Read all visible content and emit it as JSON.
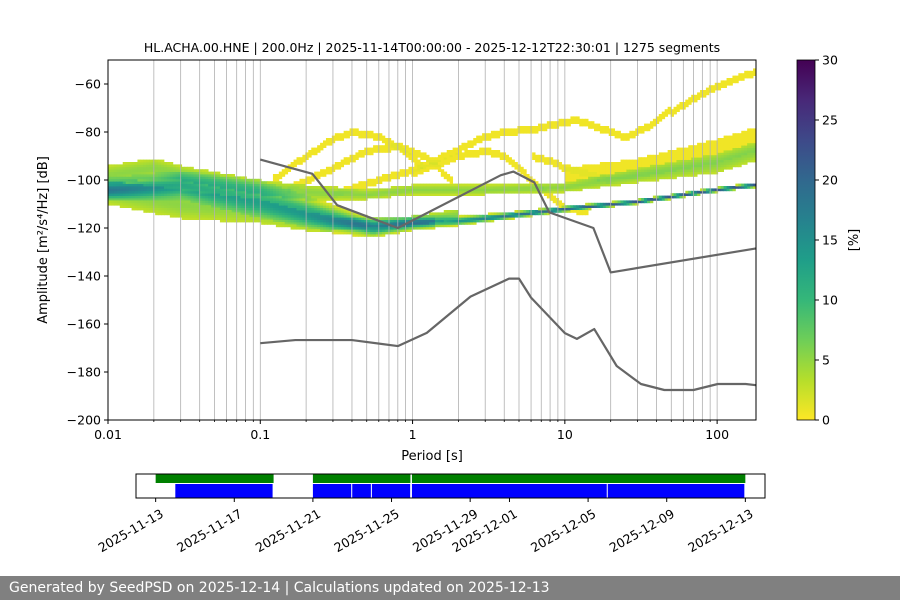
{
  "chart_data": {
    "type": "heatmap",
    "title": "HL.ACHA.00.HNE | 200.0Hz | 2025-11-14T00:00:00 - 2025-12-12T22:30:01 | 1275 segments",
    "xlabel": "Period [s]",
    "ylabel": "Amplitude [m²/s⁴/Hz] [dB]",
    "x_scale": "log",
    "xlim": [
      0.01,
      180
    ],
    "ylim": [
      -200,
      -50
    ],
    "x_ticks": [
      0.01,
      0.1,
      1,
      10,
      100
    ],
    "x_tick_labels": [
      "0.01",
      "0.1",
      "1",
      "10",
      "100"
    ],
    "y_ticks": [
      -200,
      -180,
      -160,
      -140,
      -120,
      -100,
      -80,
      -60
    ],
    "y_tick_labels": [
      "−200",
      "−180",
      "−160",
      "−140",
      "−120",
      "−100",
      "−80",
      "−60"
    ],
    "grid": "vertical",
    "colorbar": {
      "label": "[%]",
      "range": [
        0,
        30
      ],
      "ticks": [
        0,
        5,
        10,
        15,
        20,
        25,
        30
      ],
      "tick_labels": [
        "0",
        "5",
        "10",
        "15",
        "20",
        "25",
        "30"
      ],
      "colormap": [
        "#fde725",
        "#b5de2b",
        "#6ece58",
        "#35b779",
        "#1f9e89",
        "#26828e",
        "#31688e",
        "#3e4989",
        "#482878",
        "#440154"
      ]
    },
    "noise_models": [
      {
        "name": "NHNM",
        "x": [
          0.1,
          0.22,
          0.32,
          0.8,
          3.8,
          4.6,
          6.3,
          7.9,
          15.4,
          20,
          180
        ],
        "y": [
          -91.5,
          -97.4,
          -110.5,
          -120,
          -98,
          -96.5,
          -101,
          -113.5,
          -120,
          -138.5,
          -128.5
        ]
      },
      {
        "name": "NLNM",
        "x": [
          0.1,
          0.17,
          0.4,
          0.8,
          1.24,
          2.4,
          4.3,
          5,
          6,
          10,
          12,
          15.6,
          21.9,
          31.6,
          45,
          70,
          101,
          154,
          180
        ],
        "y": [
          -168,
          -166.7,
          -166.7,
          -169.2,
          -163.7,
          -148.6,
          -141.1,
          -141.1,
          -149,
          -163.8,
          -166.2,
          -162.1,
          -177.5,
          -185,
          -187.5,
          -187.5,
          -185,
          -185,
          -185.5
        ]
      }
    ],
    "density_bands": [
      {
        "name": "primary",
        "x": [
          0.01,
          0.03,
          0.1,
          0.3,
          0.55,
          1,
          2,
          4,
          10,
          30,
          100,
          180
        ],
        "center": [
          -104,
          -102,
          -108,
          -116,
          -120,
          -118,
          -117,
          -115,
          -112,
          -109,
          -104,
          -102
        ],
        "half_width": [
          5,
          6,
          8,
          6,
          4,
          3,
          2,
          1.5,
          1.2,
          1,
          1,
          1
        ]
      },
      {
        "name": "lower-spread",
        "x": [
          0.01,
          0.03,
          0.1,
          0.2,
          0.3,
          0.5,
          1,
          2
        ],
        "center": [
          -105,
          -110,
          -113,
          -117,
          -118,
          -118,
          -117,
          -114
        ],
        "half_width": [
          5,
          6,
          5,
          4,
          3,
          2,
          2,
          2
        ]
      },
      {
        "name": "upper-spread",
        "x": [
          0.01,
          0.02,
          0.03,
          0.1,
          0.2,
          0.5,
          1,
          3,
          10,
          30,
          100,
          180
        ],
        "center": [
          -98,
          -95,
          -97,
          -103,
          -105,
          -106,
          -104,
          -104,
          -103,
          -98,
          -93,
          -88
        ],
        "half_width": [
          4,
          4,
          3,
          3,
          3,
          2,
          2,
          2,
          2,
          3,
          4,
          4
        ]
      },
      {
        "name": "arc-1",
        "x": [
          0.12,
          0.2,
          0.3,
          0.4,
          0.6,
          0.9,
          1.2
        ],
        "center": [
          -100,
          -90,
          -83,
          -80,
          -82,
          -88,
          -95
        ],
        "half_width": [
          1.5,
          1.5,
          1.5,
          1.5,
          1.5,
          1.5,
          1.5
        ]
      },
      {
        "name": "arc-2",
        "x": [
          0.15,
          0.3,
          0.5,
          0.8,
          1.2,
          1.8
        ],
        "center": [
          -104,
          -95,
          -88,
          -86,
          -90,
          -100
        ],
        "half_width": [
          1.5,
          1.5,
          1.5,
          1.5,
          1.5,
          1.5
        ]
      },
      {
        "name": "arc-3",
        "x": [
          0.3,
          0.6,
          1,
          1.5,
          2.2,
          3,
          4,
          6,
          10,
          12,
          18,
          25,
          35,
          50
        ],
        "center": [
          -106,
          -100,
          -96,
          -91,
          -86,
          -82,
          -80,
          -79,
          -76,
          -75,
          -79,
          -82,
          -78,
          -70
        ],
        "half_width": [
          1.5,
          1.5,
          1.5,
          1.5,
          1.5,
          1.5,
          1.5,
          1.5,
          1.5,
          1.5,
          1.5,
          1.5,
          1.5,
          1.5
        ]
      },
      {
        "name": "arc-4",
        "x": [
          50,
          70,
          100,
          130,
          180
        ],
        "center": [
          -72,
          -66,
          -61,
          -58,
          -55
        ],
        "half_width": [
          1.5,
          1.5,
          1.5,
          1.5,
          1.5
        ]
      },
      {
        "name": "arc-5",
        "x": [
          1,
          1.5,
          2,
          3,
          4,
          5,
          6,
          8,
          10,
          14
        ],
        "center": [
          -97,
          -93,
          -90,
          -88,
          -90,
          -95,
          -100,
          -107,
          -112,
          -113
        ],
        "half_width": [
          1.5,
          1.5,
          1.5,
          1.5,
          1.5,
          1.5,
          1.5,
          1.5,
          1.5,
          1.5
        ]
      },
      {
        "name": "arc-6",
        "x": [
          6,
          8,
          10,
          15,
          20
        ],
        "center": [
          -90,
          -92,
          -95,
          -98,
          -100
        ],
        "half_width": [
          1.5,
          1.5,
          1.5,
          1.5,
          1.5
        ]
      },
      {
        "name": "upper-scatter",
        "x": [
          10,
          30,
          100,
          180
        ],
        "center": [
          -98,
          -95,
          -88,
          -83
        ],
        "half_width": [
          3,
          4,
          5,
          5
        ]
      }
    ],
    "availability": {
      "date_ticks": [
        "2025-11-13",
        "2025-11-17",
        "2025-11-21",
        "2025-11-25",
        "2025-11-29",
        "2025-12-01",
        "2025-12-05",
        "2025-12-09",
        "2025-12-13"
      ],
      "xlim": [
        "2025-11-12",
        "2025-12-14"
      ],
      "green_segments": [
        [
          "2025-11-13",
          "2025-11-19"
        ],
        [
          "2025-11-21",
          "2025-12-13"
        ]
      ],
      "blue_segments": [
        [
          "2025-11-14",
          "2025-11-19"
        ],
        [
          "2025-11-21",
          "2025-11-23"
        ],
        [
          "2025-11-23",
          "2025-11-24"
        ],
        [
          "2025-11-24",
          "2025-11-26"
        ],
        [
          "2025-11-26",
          "2025-12-06"
        ],
        [
          "2025-12-06",
          "2025-12-13"
        ]
      ],
      "gap_lines": [
        "2025-11-26"
      ],
      "colors": {
        "green": "#008000",
        "blue": "#0000ff"
      }
    }
  },
  "footer": {
    "text": "Generated by SeedPSD on 2025-12-14 | Calculations updated on 2025-12-13"
  }
}
